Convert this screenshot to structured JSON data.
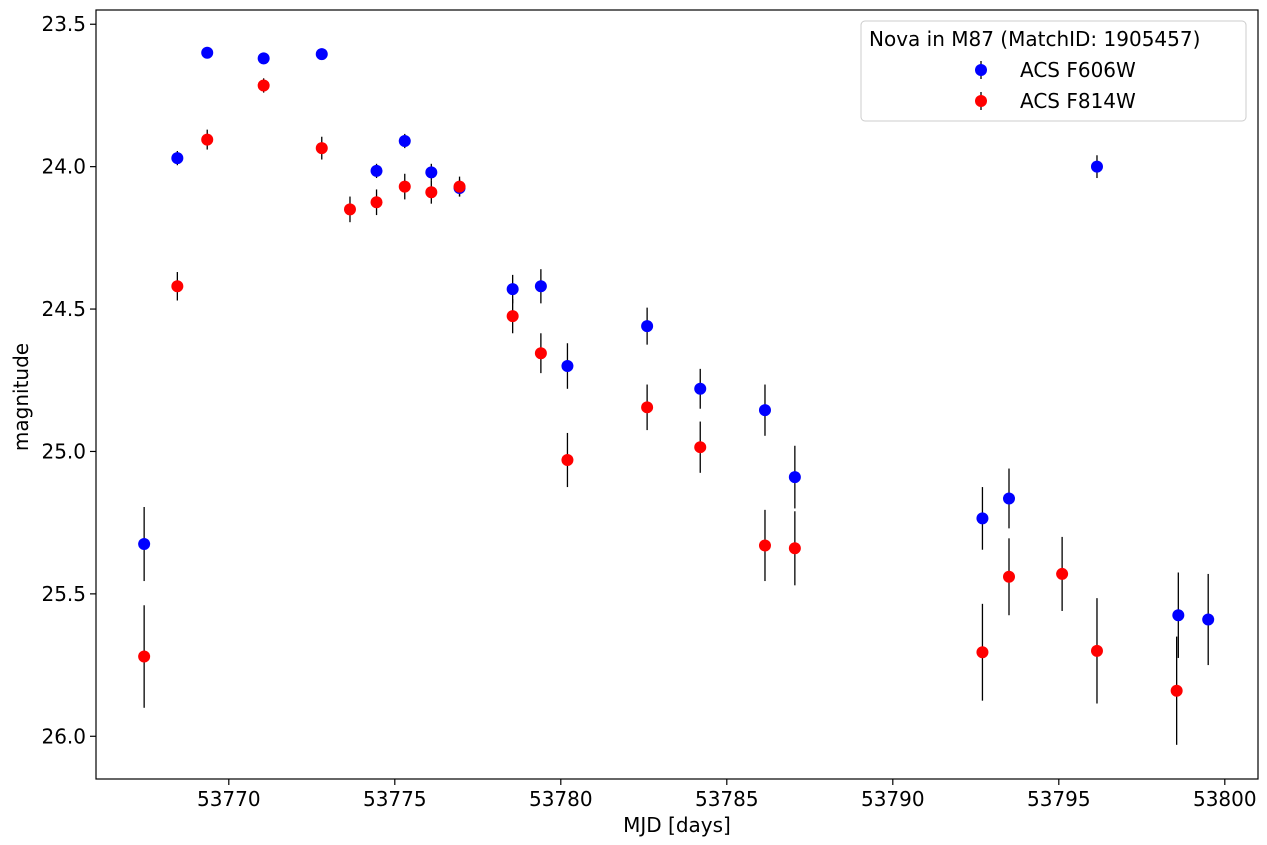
{
  "chart_data": {
    "type": "scatter",
    "title": "",
    "xlabel": "MJD [days]",
    "ylabel": "magnitude",
    "xlim": [
      53766.0,
      53801.0
    ],
    "ylim": [
      26.15,
      23.45
    ],
    "y_inverted": true,
    "grid": false,
    "xticks": [
      53770,
      53775,
      53780,
      53785,
      53790,
      53795,
      53800
    ],
    "xtick_labels": [
      "53770",
      "53775",
      "53780",
      "53785",
      "53790",
      "53795",
      "53800"
    ],
    "yticks": [
      23.5,
      24.0,
      24.5,
      25.0,
      25.5,
      26.0
    ],
    "ytick_labels": [
      "23.5",
      "24.0",
      "24.5",
      "25.0",
      "25.5",
      "26.0"
    ],
    "legend": {
      "title": "Nova in M87 (MatchID: 1905457)",
      "location": "top-right",
      "entries": [
        "ACS F606W",
        "ACS F814W"
      ]
    },
    "series": [
      {
        "name": "ACS F606W",
        "color": "#0000ff",
        "points": [
          {
            "x": 53767.45,
            "y": 25.325,
            "err": 0.13
          },
          {
            "x": 53768.45,
            "y": 23.97,
            "err": 0.025
          },
          {
            "x": 53769.35,
            "y": 23.6,
            "err": 0.02
          },
          {
            "x": 53771.05,
            "y": 23.62,
            "err": 0.02
          },
          {
            "x": 53772.8,
            "y": 23.605,
            "err": 0.02
          },
          {
            "x": 53774.45,
            "y": 24.015,
            "err": 0.025
          },
          {
            "x": 53775.3,
            "y": 23.91,
            "err": 0.025
          },
          {
            "x": 53776.1,
            "y": 24.02,
            "err": 0.03
          },
          {
            "x": 53776.95,
            "y": 24.075,
            "err": 0.03
          },
          {
            "x": 53778.55,
            "y": 24.43,
            "err": 0.05
          },
          {
            "x": 53779.4,
            "y": 24.42,
            "err": 0.06
          },
          {
            "x": 53780.2,
            "y": 24.7,
            "err": 0.08
          },
          {
            "x": 53782.6,
            "y": 24.56,
            "err": 0.065
          },
          {
            "x": 53784.2,
            "y": 24.78,
            "err": 0.07
          },
          {
            "x": 53786.15,
            "y": 24.855,
            "err": 0.09
          },
          {
            "x": 53787.05,
            "y": 25.09,
            "err": 0.11
          },
          {
            "x": 53792.7,
            "y": 25.235,
            "err": 0.11
          },
          {
            "x": 53793.5,
            "y": 25.165,
            "err": 0.105
          },
          {
            "x": 53796.15,
            "y": 24.0,
            "err": 0.04
          },
          {
            "x": 53798.6,
            "y": 25.575,
            "err": 0.15
          },
          {
            "x": 53799.5,
            "y": 25.59,
            "err": 0.16
          }
        ]
      },
      {
        "name": "ACS F814W",
        "color": "#ff0000",
        "points": [
          {
            "x": 53767.45,
            "y": 25.72,
            "err": 0.18
          },
          {
            "x": 53768.45,
            "y": 24.42,
            "err": 0.05
          },
          {
            "x": 53769.35,
            "y": 23.905,
            "err": 0.035
          },
          {
            "x": 53771.05,
            "y": 23.715,
            "err": 0.025
          },
          {
            "x": 53772.8,
            "y": 23.935,
            "err": 0.04
          },
          {
            "x": 53773.65,
            "y": 24.15,
            "err": 0.045
          },
          {
            "x": 53774.45,
            "y": 24.125,
            "err": 0.045
          },
          {
            "x": 53775.3,
            "y": 24.07,
            "err": 0.045
          },
          {
            "x": 53776.1,
            "y": 24.09,
            "err": 0.04
          },
          {
            "x": 53776.95,
            "y": 24.07,
            "err": 0.035
          },
          {
            "x": 53778.55,
            "y": 24.525,
            "err": 0.06
          },
          {
            "x": 53779.4,
            "y": 24.655,
            "err": 0.07
          },
          {
            "x": 53780.2,
            "y": 25.03,
            "err": 0.095
          },
          {
            "x": 53782.6,
            "y": 24.845,
            "err": 0.08
          },
          {
            "x": 53784.2,
            "y": 24.985,
            "err": 0.09
          },
          {
            "x": 53786.15,
            "y": 25.33,
            "err": 0.125
          },
          {
            "x": 53787.05,
            "y": 25.34,
            "err": 0.13
          },
          {
            "x": 53792.7,
            "y": 25.705,
            "err": 0.17
          },
          {
            "x": 53793.5,
            "y": 25.44,
            "err": 0.135
          },
          {
            "x": 53795.1,
            "y": 25.43,
            "err": 0.13
          },
          {
            "x": 53796.15,
            "y": 25.7,
            "err": 0.185
          },
          {
            "x": 53798.55,
            "y": 25.84,
            "err": 0.19
          }
        ]
      }
    ]
  }
}
